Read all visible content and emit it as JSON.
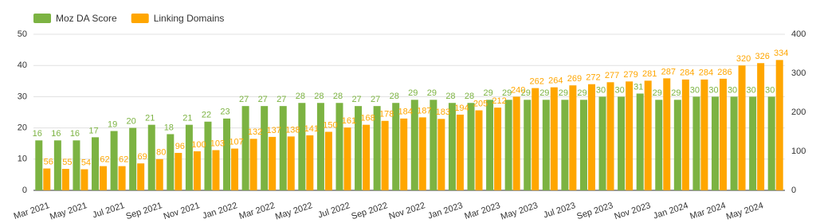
{
  "chart_data": {
    "type": "bar",
    "categories": [
      "Mar 2021",
      null,
      "May 2021",
      null,
      "Jul 2021",
      null,
      "Sep 2021",
      null,
      "Nov 2021",
      null,
      "Jan 2022",
      null,
      "Mar 2022",
      null,
      "May 2022",
      null,
      "Jul 2022",
      null,
      "Sep 2022",
      null,
      "Nov 2022",
      null,
      "Jan 2023",
      null,
      "Mar 2023",
      null,
      "May 2023",
      null,
      "Jul 2023",
      null,
      "Sep 2023",
      null,
      "Nov 2023",
      null,
      "Jan 2024",
      null,
      "Mar 2024",
      null,
      "May 2024",
      null
    ],
    "series": [
      {
        "name": "Moz DA Score",
        "color": "#7cb342",
        "values": [
          16,
          16,
          16,
          17,
          19,
          20,
          21,
          18,
          21,
          22,
          23,
          27,
          27,
          27,
          28,
          28,
          28,
          27,
          27,
          28,
          29,
          29,
          28,
          28,
          29,
          29,
          29,
          29,
          29,
          29,
          30,
          30,
          31,
          29,
          29,
          30,
          30,
          30,
          30,
          30
        ]
      },
      {
        "name": "Linking Domains",
        "color": "#ffa600",
        "axis": "y2",
        "values": [
          56,
          55,
          54,
          62,
          62,
          69,
          80,
          96,
          100,
          103,
          107,
          132,
          137,
          138,
          141,
          150,
          161,
          168,
          178,
          184,
          187,
          183,
          194,
          205,
          212,
          240,
          262,
          264,
          269,
          272,
          277,
          279,
          281,
          287,
          284,
          284,
          286,
          320,
          326,
          334
        ]
      }
    ],
    "ylim": [
      0,
      50
    ],
    "yticks": [
      0,
      10,
      20,
      30,
      40,
      50
    ],
    "y2lim": [
      0,
      400
    ],
    "y2ticks": [
      0,
      100,
      200,
      300,
      400
    ],
    "grid": true,
    "legend": "top-left"
  }
}
